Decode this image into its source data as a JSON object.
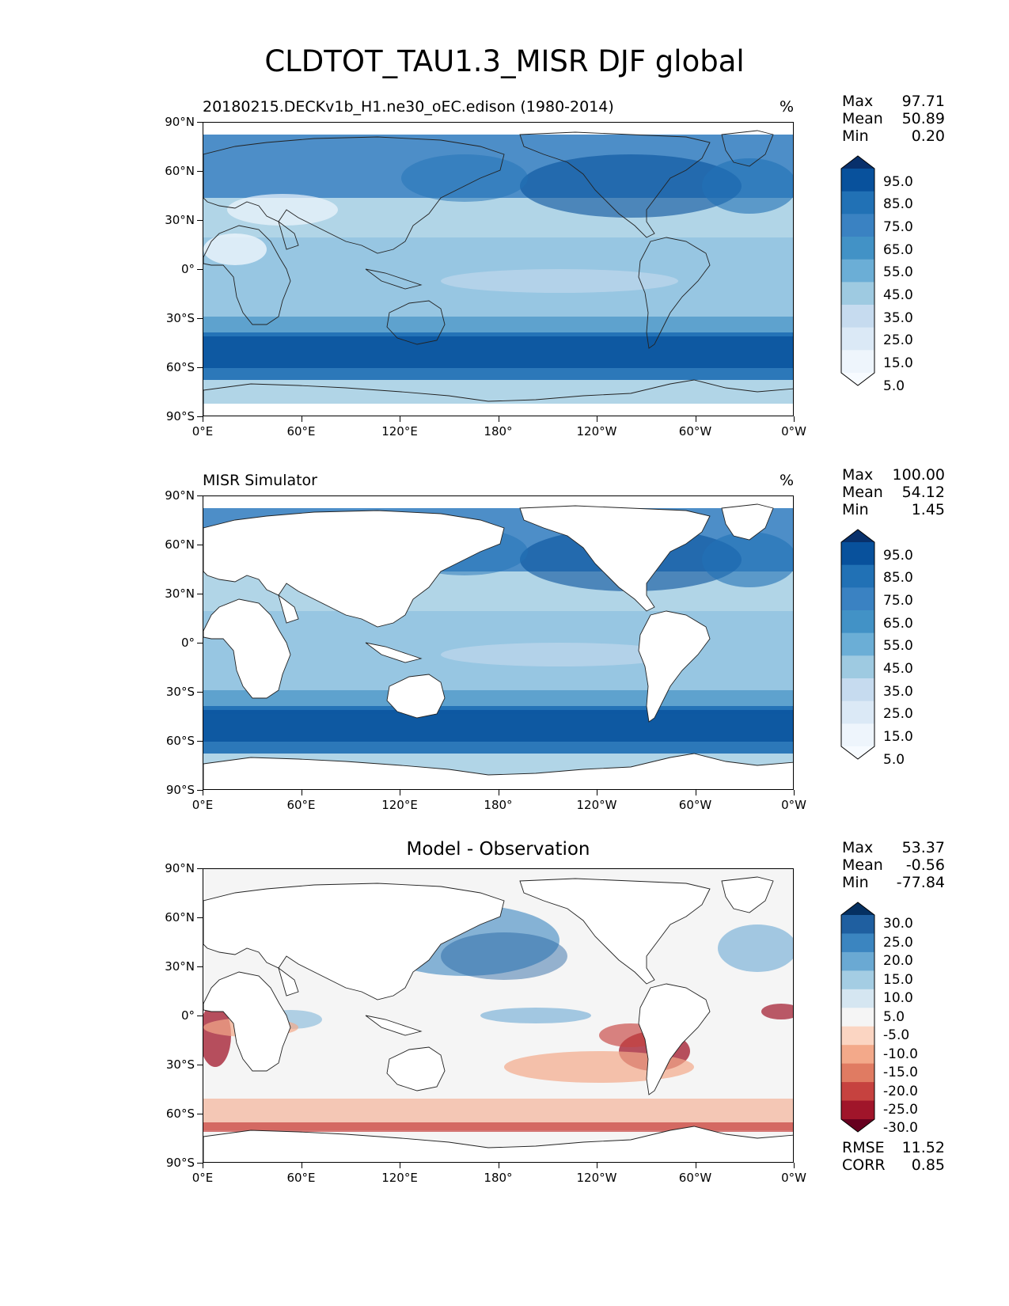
{
  "title": "CLDTOT_TAU1.3_MISR DJF global",
  "lat_labels": [
    "90°N",
    "60°N",
    "30°N",
    "0°",
    "30°S",
    "60°S",
    "90°S"
  ],
  "lon_labels": [
    "0°E",
    "60°E",
    "120°E",
    "180°",
    "120°W",
    "60°W",
    "0°W"
  ],
  "panels": [
    {
      "title_left": "20180215.DECKv1b_H1.ne30_oEC.edison (1980-2014)",
      "title_center": "",
      "units": "%",
      "stats": [
        {
          "label": "Max",
          "value": "97.71"
        },
        {
          "label": "Mean",
          "value": "50.89"
        },
        {
          "label": "Min",
          "value": "0.20"
        }
      ],
      "colorbar_labels": [
        "95.0",
        "85.0",
        "75.0",
        "65.0",
        "55.0",
        "45.0",
        "35.0",
        "25.0",
        "15.0",
        "5.0"
      ],
      "colorbar_colors": [
        "#08306b",
        "#08519c",
        "#2171b5",
        "#3a82c2",
        "#4292c6",
        "#6baed6",
        "#9ecae1",
        "#c6dbef",
        "#dbe9f6",
        "#eef5fc",
        "#f7fbff"
      ],
      "footer": []
    },
    {
      "title_left": "MISR Simulator",
      "title_center": "",
      "units": "%",
      "stats": [
        {
          "label": "Max",
          "value": "100.00"
        },
        {
          "label": "Mean",
          "value": "54.12"
        },
        {
          "label": "Min",
          "value": "1.45"
        }
      ],
      "colorbar_labels": [
        "95.0",
        "85.0",
        "75.0",
        "65.0",
        "55.0",
        "45.0",
        "35.0",
        "25.0",
        "15.0",
        "5.0"
      ],
      "colorbar_colors": [
        "#08306b",
        "#08519c",
        "#2171b5",
        "#3a82c2",
        "#4292c6",
        "#6baed6",
        "#9ecae1",
        "#c6dbef",
        "#dbe9f6",
        "#eef5fc",
        "#f7fbff"
      ],
      "footer": []
    },
    {
      "title_left": "",
      "title_center": "Model - Observation",
      "units": "",
      "stats": [
        {
          "label": "Max",
          "value": "53.37"
        },
        {
          "label": "Mean",
          "value": "-0.56"
        },
        {
          "label": "Min",
          "value": "-77.84"
        }
      ],
      "colorbar_labels": [
        "30.0",
        "25.0",
        "20.0",
        "15.0",
        "10.0",
        "5.0",
        "-5.0",
        "-10.0",
        "-15.0",
        "-20.0",
        "-25.0",
        "-30.0"
      ],
      "colorbar_colors": [
        "#053061",
        "#1f5fa0",
        "#3b85c0",
        "#6aa9d3",
        "#a4cde3",
        "#d5e6f1",
        "#f5f5f5",
        "#fbd5c2",
        "#f3a98a",
        "#e07b62",
        "#c6423f",
        "#a0152a",
        "#67001f"
      ],
      "footer": [
        {
          "label": "RMSE",
          "value": "11.52"
        },
        {
          "label": "CORR",
          "value": "0.85"
        }
      ]
    }
  ]
}
